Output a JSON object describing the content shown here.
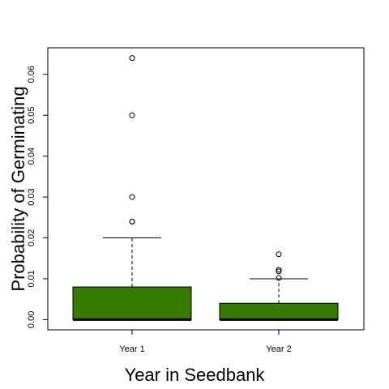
{
  "chart_data": {
    "type": "boxplot",
    "title": "",
    "xlabel": "Year in Seedbank",
    "ylabel": "Probability of Germinating",
    "ylim": [
      -0.0025,
      0.0665
    ],
    "yticks": [
      "0.00",
      "0.01",
      "0.02",
      "0.03",
      "0.04",
      "0.05",
      "0.06"
    ],
    "ytick_values": [
      0,
      0.01,
      0.02,
      0.03,
      0.04,
      0.05,
      0.06
    ],
    "grid": false,
    "legend": "none",
    "box_color": "#367a00",
    "categories": [
      "Year 1",
      "Year 2"
    ],
    "boxes": [
      {
        "label": "Year 1",
        "min": 0.0,
        "q1": 0.0,
        "median": 0.0,
        "q3": 0.008,
        "whisker_high": 0.02,
        "outliers": [
          0.064,
          0.05,
          0.03,
          0.024,
          0.024
        ]
      },
      {
        "label": "Year 2",
        "min": 0.0,
        "q1": 0.0,
        "median": 0.0,
        "q3": 0.004,
        "whisker_high": 0.01,
        "outliers": [
          0.016,
          0.0122,
          0.0118,
          0.0102
        ]
      }
    ]
  }
}
